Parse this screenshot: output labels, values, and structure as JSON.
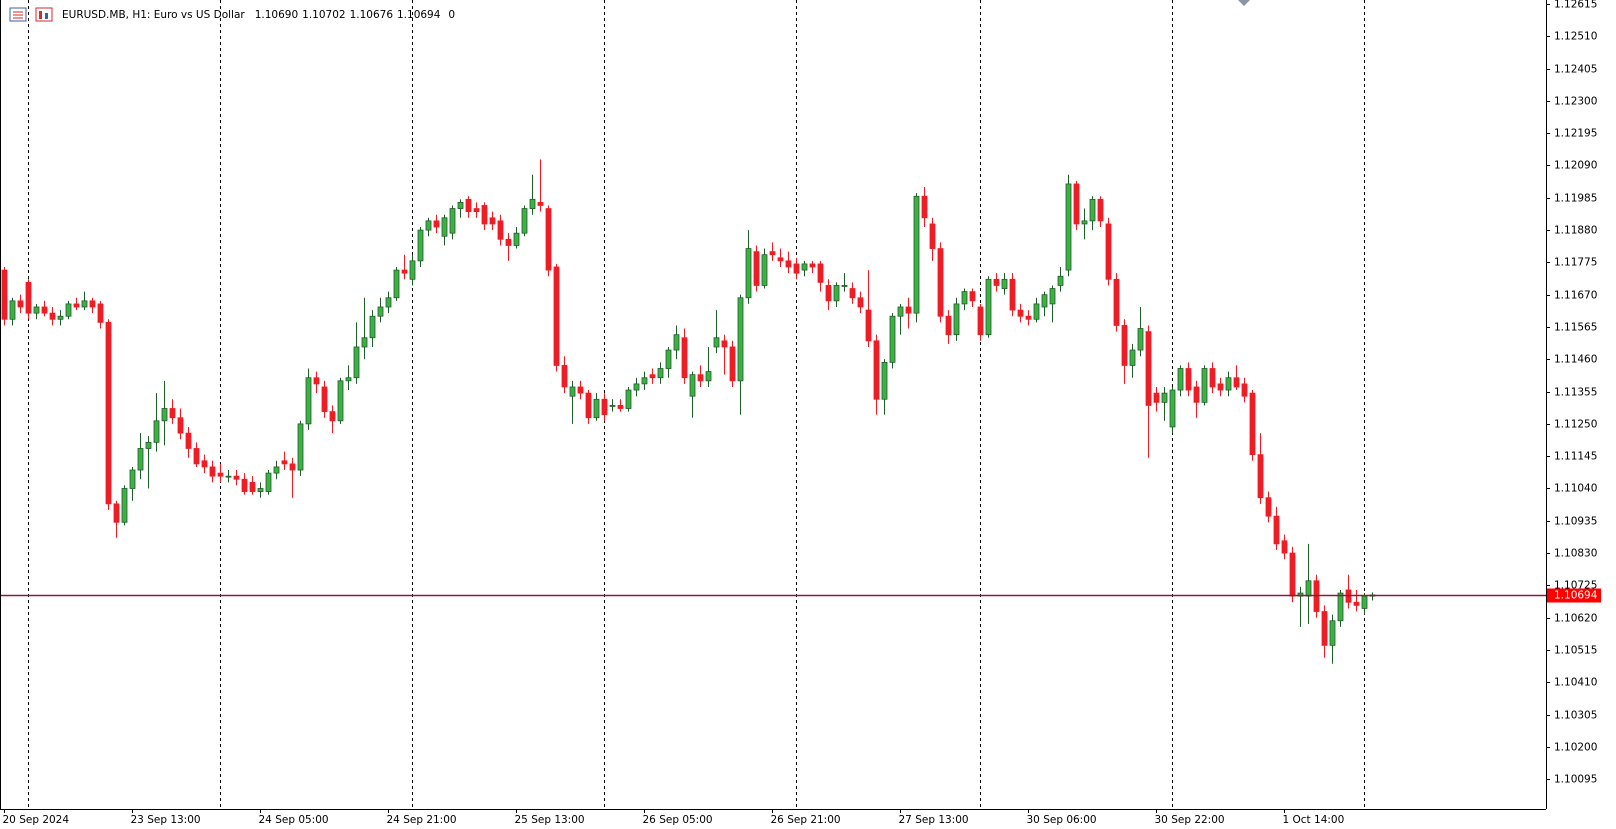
{
  "chart_data": {
    "type": "candlestick",
    "title": "EURUSD.MB, H1:  Euro vs US Dollar",
    "header_ohlc": [
      {
        "value": 1.1069,
        "label": "1.10690"
      },
      1.10702,
      1.10676,
      1.10694
    ],
    "header_spread": 0,
    "up_color": "#3cb043",
    "down_color": "#ee1c25",
    "price_line": 1.10694,
    "price_line_color": "#8b1a3a",
    "ylim": [
      1.09998,
      1.12628
    ],
    "yticks": [
      1.12615,
      {
        "value": 1.1251,
        "label": "1.12510"
      },
      1.12405,
      {
        "value": 1.123,
        "label": "1.12300"
      },
      1.12195,
      {
        "value": 1.1209,
        "label": "1.12090"
      },
      1.11985,
      {
        "value": 1.1188,
        "label": "1.11880"
      },
      1.11775,
      {
        "value": 1.1167,
        "label": "1.11670"
      },
      1.11565,
      {
        "value": 1.1146,
        "label": "1.11460"
      },
      1.11355,
      {
        "value": 1.1125,
        "label": "1.11250"
      },
      1.11145,
      {
        "value": 1.1104,
        "label": "1.11040"
      },
      1.10935,
      {
        "value": 1.1083,
        "label": "1.10830"
      },
      1.10725,
      {
        "value": 1.1062,
        "label": "1.10620"
      },
      1.10515,
      {
        "value": 1.1041,
        "label": "1.10410"
      },
      1.10305,
      {
        "value": 1.102,
        "label": "1.10200"
      },
      1.10095
    ],
    "xticks": [
      {
        "value": 0,
        "label": "20 Sep 2024"
      },
      {
        "value": 16,
        "label": "23 Sep 13:00"
      },
      {
        "value": 32,
        "label": "24 Sep 05:00"
      },
      {
        "value": 48,
        "label": "24 Sep 21:00"
      },
      {
        "value": 64,
        "label": "25 Sep 13:00"
      },
      {
        "value": 80,
        "label": "26 Sep 05:00"
      },
      {
        "value": 96,
        "label": "26 Sep 21:00"
      },
      {
        "value": 112,
        "label": "27 Sep 13:00"
      },
      {
        "value": 128,
        "label": "30 Sep 06:00"
      },
      {
        "value": 144,
        "label": "30 Sep 22:00"
      },
      {
        "value": 160,
        "label": "1 Oct 14:00"
      }
    ],
    "period_separators": [
      3,
      27,
      51,
      75,
      99,
      122,
      146,
      170
    ],
    "candles": [
      [
        1.1175,
        1.1176,
        1.1157,
        1.1159
      ],
      [
        1.1159,
        1.1166,
        1.1157,
        1.1165
      ],
      [
        1.1165,
        1.1167,
        1.1161,
        1.1163
      ],
      [
        1.1171,
        1.1172,
        1.1159,
        1.1161
      ],
      [
        1.1161,
        1.1164,
        1.1159,
        1.1163
      ],
      [
        1.1163,
        1.1165,
        1.116,
        1.1161
      ],
      [
        1.1161,
        1.1163,
        1.1157,
        1.1159
      ],
      [
        1.1159,
        1.1162,
        1.1157,
        1.116
      ],
      [
        1.116,
        1.1165,
        1.1159,
        1.1164
      ],
      [
        1.1164,
        1.1166,
        1.1162,
        1.1163
      ],
      [
        1.1163,
        1.1168,
        1.1162,
        1.1165
      ],
      [
        1.1165,
        1.1166,
        1.1161,
        1.1163
      ],
      [
        1.1164,
        1.1165,
        1.1156,
        1.1158
      ],
      [
        1.1158,
        1.1159,
        1.1097,
        1.1099
      ],
      [
        1.1099,
        1.11,
        1.1088,
        1.1093
      ],
      [
        1.1093,
        1.1105,
        1.1092,
        1.1104
      ],
      [
        1.1104,
        1.1111,
        1.11,
        1.111
      ],
      [
        1.111,
        1.1122,
        1.1107,
        1.1117
      ],
      [
        1.1117,
        1.1121,
        1.1104,
        1.1119
      ],
      [
        1.1119,
        1.1135,
        1.1116,
        1.1126
      ],
      [
        1.1126,
        1.1139,
        1.1118,
        1.113
      ],
      [
        1.113,
        1.1133,
        1.1125,
        1.1127
      ],
      [
        1.1127,
        1.113,
        1.112,
        1.1122
      ],
      [
        1.1122,
        1.1124,
        1.1114,
        1.1117
      ],
      [
        1.1117,
        1.1119,
        1.1111,
        1.1112
      ],
      [
        1.1113,
        1.1115,
        1.1109,
        1.1111
      ],
      [
        1.1111,
        1.1113,
        1.1106,
        1.1108
      ],
      [
        1.1109,
        1.1112,
        1.1106,
        1.1108
      ],
      [
        1.1108,
        1.111,
        1.1106,
        1.1108
      ],
      [
        1.1108,
        1.111,
        1.1105,
        1.1107
      ],
      [
        1.1107,
        1.1109,
        1.1102,
        1.1103
      ],
      [
        1.1106,
        1.1108,
        1.1102,
        1.1103
      ],
      [
        1.1103,
        1.1106,
        1.1101,
        1.1104
      ],
      [
        1.1103,
        1.111,
        1.1102,
        1.1109
      ],
      [
        1.1109,
        1.1113,
        1.1107,
        1.1111
      ],
      [
        1.1113,
        1.1116,
        1.111,
        1.1112
      ],
      [
        1.1112,
        1.1114,
        1.1101,
        1.111
      ],
      [
        1.111,
        1.1126,
        1.1108,
        1.1125
      ],
      [
        1.1125,
        1.1143,
        1.1123,
        1.114
      ],
      [
        1.114,
        1.1142,
        1.1135,
        1.1138
      ],
      [
        1.1137,
        1.1139,
        1.1127,
        1.1129
      ],
      [
        1.1129,
        1.1131,
        1.1122,
        1.1126
      ],
      [
        1.1126,
        1.114,
        1.1125,
        1.1139
      ],
      [
        1.1139,
        1.1144,
        1.1136,
        1.114
      ],
      [
        1.114,
        1.1158,
        1.1138,
        1.115
      ],
      [
        1.115,
        1.1166,
        1.1146,
        1.1153
      ],
      [
        1.1153,
        1.1162,
        1.115,
        1.116
      ],
      [
        1.116,
        1.1166,
        1.1158,
        1.1163
      ],
      [
        1.1163,
        1.1168,
        1.1161,
        1.1166
      ],
      [
        1.1166,
        1.1176,
        1.1165,
        1.1175
      ],
      [
        1.1175,
        1.118,
        1.1172,
        1.1174
      ],
      [
        1.1172,
        1.118,
        1.117,
        1.1178
      ],
      [
        1.1178,
        1.1189,
        1.1176,
        1.1188
      ],
      [
        1.1188,
        1.1192,
        1.1186,
        1.1191
      ],
      [
        1.1191,
        1.1193,
        1.1187,
        1.1189
      ],
      [
        1.1186,
        1.1193,
        1.1183,
        1.1192
      ],
      [
        1.1187,
        1.1196,
        1.1185,
        1.1195
      ],
      [
        1.1195,
        1.1198,
        1.1192,
        1.1197
      ],
      [
        1.1198,
        1.1199,
        1.1192,
        1.1194
      ],
      [
        1.1195,
        1.1197,
        1.1192,
        1.1194
      ],
      [
        1.1196,
        1.1197,
        1.1188,
        1.119
      ],
      [
        1.1192,
        1.1194,
        1.1188,
        1.119
      ],
      [
        1.1191,
        1.1193,
        1.1183,
        1.1185
      ],
      [
        1.1185,
        1.1187,
        1.1178,
        1.1183
      ],
      [
        1.1183,
        1.1189,
        1.1182,
        1.1187
      ],
      [
        1.1187,
        1.1196,
        1.1186,
        1.1195
      ],
      [
        1.1195,
        1.1206,
        1.1193,
        1.1198
      ],
      [
        1.1197,
        1.1211,
        1.1194,
        1.1196
      ],
      [
        1.1195,
        1.1196,
        1.1173,
        1.1175
      ],
      [
        1.1176,
        1.1177,
        1.1142,
        1.1144
      ],
      [
        1.1144,
        1.1147,
        1.1135,
        1.1137
      ],
      [
        1.1134,
        1.1139,
        1.1125,
        1.1137
      ],
      [
        1.1137,
        1.1139,
        1.1133,
        1.1135
      ],
      [
        1.1135,
        1.1136,
        1.1125,
        1.1127
      ],
      [
        1.1127,
        1.1135,
        1.1126,
        1.1133
      ],
      [
        1.1133,
        1.1135,
        1.1126,
        1.1128
      ],
      [
        1.1131,
        1.1133,
        1.1129,
        1.1131
      ],
      [
        1.1131,
        1.1133,
        1.1129,
        1.113
      ],
      [
        1.113,
        1.1137,
        1.1129,
        1.1136
      ],
      [
        1.1136,
        1.114,
        1.1134,
        1.1138
      ],
      [
        1.1138,
        1.1142,
        1.1136,
        1.114
      ],
      [
        1.1141,
        1.1143,
        1.1138,
        1.114
      ],
      [
        1.114,
        1.1145,
        1.1138,
        1.1143
      ],
      [
        1.1143,
        1.115,
        1.114,
        1.1149
      ],
      [
        1.1149,
        1.1157,
        1.1146,
        1.1154
      ],
      [
        1.1153,
        1.1156,
        1.1138,
        1.114
      ],
      [
        1.1134,
        1.1142,
        1.1127,
        1.1141
      ],
      [
        1.1141,
        1.1144,
        1.1137,
        1.1139
      ],
      [
        1.1139,
        1.115,
        1.1137,
        1.1142
      ],
      [
        1.115,
        1.1162,
        1.1148,
        1.1153
      ],
      [
        1.1152,
        1.1154,
        1.1141,
        1.115
      ],
      [
        1.115,
        1.1152,
        1.1137,
        1.1139
      ],
      [
        1.1139,
        1.1167,
        1.1128,
        1.1166
      ],
      [
        1.1166,
        1.1188,
        1.1164,
        1.1182
      ],
      [
        1.1181,
        1.1183,
        1.1168,
        1.117
      ],
      [
        1.117,
        1.1182,
        1.1169,
        1.118
      ],
      [
        1.1181,
        1.1184,
        1.1178,
        1.118
      ],
      [
        1.1179,
        1.1182,
        1.1176,
        1.1178
      ],
      [
        1.1178,
        1.1181,
        1.1174,
        1.1176
      ],
      [
        1.1177,
        1.1179,
        1.1172,
        1.1174
      ],
      [
        1.1175,
        1.1178,
        1.1173,
        1.1177
      ],
      [
        1.1177,
        1.1178,
        1.1174,
        1.1176
      ],
      [
        1.1177,
        1.1178,
        1.1168,
        1.1171
      ],
      [
        1.117,
        1.1172,
        1.1162,
        1.1165
      ],
      [
        1.1165,
        1.1171,
        1.1163,
        1.117
      ],
      [
        1.117,
        1.1174,
        1.1168,
        1.117
      ],
      [
        1.1169,
        1.1171,
        1.1164,
        1.1166
      ],
      [
        1.1166,
        1.1168,
        1.1161,
        1.1163
      ],
      [
        1.1162,
        1.1175,
        1.115,
        1.1152
      ],
      [
        1.1152,
        1.1154,
        1.1128,
        1.1133
      ],
      [
        1.1133,
        1.1146,
        1.1128,
        1.1145
      ],
      [
        1.1145,
        1.1161,
        1.1143,
        1.116
      ],
      [
        1.116,
        1.1164,
        1.1154,
        1.1163
      ],
      [
        1.1163,
        1.1166,
        1.1156,
        1.1161
      ],
      [
        1.1161,
        1.12,
        1.1158,
        1.1199
      ],
      [
        1.1199,
        1.1202,
        1.1189,
        1.1192
      ],
      [
        1.119,
        1.1192,
        1.1178,
        1.1182
      ],
      [
        1.1182,
        1.1184,
        1.1158,
        1.116
      ],
      [
        1.116,
        1.1162,
        1.1151,
        1.1154
      ],
      [
        1.1154,
        1.1166,
        1.1152,
        1.1164
      ],
      [
        1.1164,
        1.1169,
        1.1162,
        1.1168
      ],
      [
        1.1168,
        1.1169,
        1.1163,
        1.1165
      ],
      [
        1.1163,
        1.1164,
        1.1152,
        1.1154
      ],
      [
        1.1154,
        1.1173,
        1.1153,
        1.1172
      ],
      [
        1.1172,
        1.1174,
        1.1168,
        1.117
      ],
      [
        1.1169,
        1.1174,
        1.1167,
        1.1172
      ],
      [
        1.1172,
        1.1174,
        1.116,
        1.1162
      ],
      [
        1.1162,
        1.1164,
        1.1158,
        1.116
      ],
      [
        1.116,
        1.1162,
        1.1157,
        1.1159
      ],
      [
        1.1159,
        1.1166,
        1.1158,
        1.1164
      ],
      [
        1.1163,
        1.1168,
        1.116,
        1.1167
      ],
      [
        1.1164,
        1.117,
        1.1158,
        1.1169
      ],
      [
        1.117,
        1.1176,
        1.1168,
        1.1173
      ],
      [
        1.1175,
        1.1206,
        1.1173,
        1.1203
      ],
      [
        1.1203,
        1.1204,
        1.1188,
        1.119
      ],
      [
        1.119,
        1.1195,
        1.1185,
        1.1191
      ],
      [
        1.1191,
        1.1199,
        1.1188,
        1.1198
      ],
      [
        1.1198,
        1.1199,
        1.1189,
        1.1191
      ],
      [
        1.119,
        1.1192,
        1.117,
        1.1172
      ],
      [
        1.1172,
        1.1174,
        1.1155,
        1.1157
      ],
      [
        1.1157,
        1.1159,
        1.1138,
        1.1144
      ],
      [
        1.1144,
        1.1151,
        1.114,
        1.1149
      ],
      [
        1.1149,
        1.1163,
        1.1147,
        1.1156
      ],
      [
        1.1155,
        1.1157,
        1.1114,
        1.1131
      ],
      [
        1.1135,
        1.1137,
        1.1129,
        1.1132
      ],
      [
        1.1132,
        1.1137,
        1.1126,
        1.1135
      ],
      [
        1.1124,
        1.1137,
        1.1122,
        1.1136
      ],
      [
        1.1136,
        1.1144,
        1.1134,
        1.1143
      ],
      [
        1.1143,
        1.1145,
        1.1134,
        1.1136
      ],
      [
        1.1137,
        1.1139,
        1.1127,
        1.1132
      ],
      [
        1.1132,
        1.1144,
        1.1131,
        1.1143
      ],
      [
        1.1143,
        1.1145,
        1.1135,
        1.1137
      ],
      [
        1.1138,
        1.114,
        1.1134,
        1.1136
      ],
      [
        1.1136,
        1.1142,
        1.1134,
        1.114
      ],
      [
        1.114,
        1.1144,
        1.1136,
        1.1137
      ],
      [
        1.1138,
        1.114,
        1.1132,
        1.1134
      ],
      [
        1.1135,
        1.1136,
        1.1113,
        1.1115
      ],
      [
        1.1115,
        1.1122,
        1.1099,
        1.1101
      ],
      [
        1.1101,
        1.1103,
        1.1093,
        1.1095
      ],
      [
        1.1095,
        1.1098,
        1.1084,
        1.1086
      ],
      [
        1.1087,
        1.1089,
        1.1081,
        1.1083
      ],
      [
        1.1083,
        1.1085,
        1.1067,
        1.1069
      ],
      [
        1.1069,
        1.1072,
        1.1059,
        1.107
      ],
      [
        1.1069,
        1.1086,
        1.106,
        1.1074
      ],
      [
        1.1074,
        1.1076,
        1.1062,
        1.1064
      ],
      [
        1.1064,
        1.1066,
        1.1049,
        1.1053
      ],
      [
        1.1053,
        1.1063,
        1.1047,
        1.1061
      ],
      [
        1.1061,
        1.1071,
        1.1059,
        1.107
      ],
      [
        1.1071,
        1.1076,
        1.1065,
        1.1067
      ],
      [
        1.1067,
        1.1071,
        1.1064,
        1.1066
      ],
      [
        1.1065,
        1.107,
        1.1063,
        1.1069
      ],
      [
        1.1069,
        1.10702,
        1.10676,
        1.10694
      ]
    ]
  }
}
